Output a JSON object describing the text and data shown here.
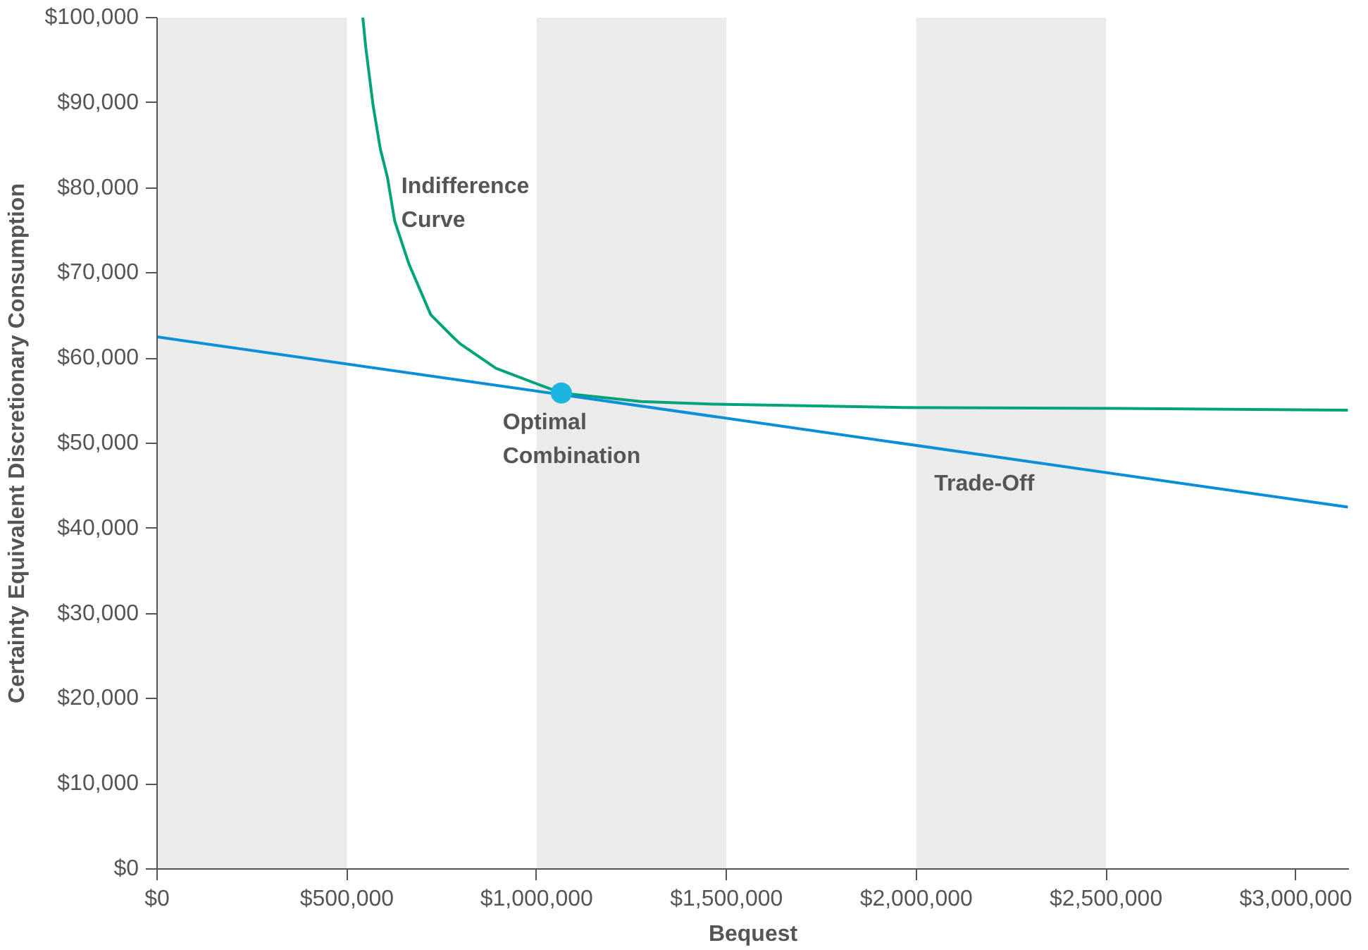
{
  "chart_data": {
    "type": "line",
    "xlabel": "Bequest",
    "ylabel": "Certainty Equivalent Discretionary Consumption",
    "xlim": [
      0,
      3140000
    ],
    "ylim": [
      0,
      100000
    ],
    "xticks": [
      {
        "value": 0,
        "label": "$0"
      },
      {
        "value": 500000,
        "label": "$500,000"
      },
      {
        "value": 1000000,
        "label": "$1,000,000"
      },
      {
        "value": 1500000,
        "label": "$1,500,000"
      },
      {
        "value": 2000000,
        "label": "$2,000,000"
      },
      {
        "value": 2500000,
        "label": "$2,500,000"
      },
      {
        "value": 3000000,
        "label": "$3,000,000"
      }
    ],
    "yticks": [
      {
        "value": 0,
        "label": "$0"
      },
      {
        "value": 10000,
        "label": "$10,000"
      },
      {
        "value": 20000,
        "label": "$20,000"
      },
      {
        "value": 30000,
        "label": "$30,000"
      },
      {
        "value": 40000,
        "label": "$40,000"
      },
      {
        "value": 50000,
        "label": "$50,000"
      },
      {
        "value": 60000,
        "label": "$60,000"
      },
      {
        "value": 70000,
        "label": "$70,000"
      },
      {
        "value": 80000,
        "label": "$80,000"
      },
      {
        "value": 90000,
        "label": "$90,000"
      },
      {
        "value": 100000,
        "label": "$100,000"
      }
    ],
    "grid": false,
    "marker": "none",
    "line_style": "solid",
    "series": [
      {
        "name": "Indifference\nCurve",
        "color": "#00a37a",
        "x": [
          542000,
          550000,
          569000,
          588000,
          607000,
          626000,
          664000,
          721000,
          779000,
          798000,
          893000,
          1065000,
          1275000,
          1466000,
          1962000,
          2534000,
          3137000
        ],
        "values": [
          100000,
          96400,
          89700,
          84600,
          81200,
          76100,
          71000,
          65100,
          62500,
          61700,
          58800,
          55900,
          54900,
          54600,
          54200,
          54100,
          53900
        ]
      },
      {
        "name": "Trade-Off",
        "color": "#0a8fd8",
        "x": [
          0,
          3137000
        ],
        "values": [
          62500,
          42500
        ]
      },
      {
        "type": "scatter",
        "name": "Optimal\nCombination",
        "marker": "circle",
        "color": "#1cb5e0",
        "x": [
          1065000
        ],
        "values": [
          55900
        ]
      }
    ],
    "bands": [
      {
        "axis": "x",
        "from": 0,
        "to": 500000,
        "color": "#ebebeb"
      },
      {
        "axis": "x",
        "from": 1000000,
        "to": 1500000,
        "color": "#ebebeb"
      },
      {
        "axis": "x",
        "from": 2000000,
        "to": 2500000,
        "color": "#ebebeb"
      }
    ]
  }
}
